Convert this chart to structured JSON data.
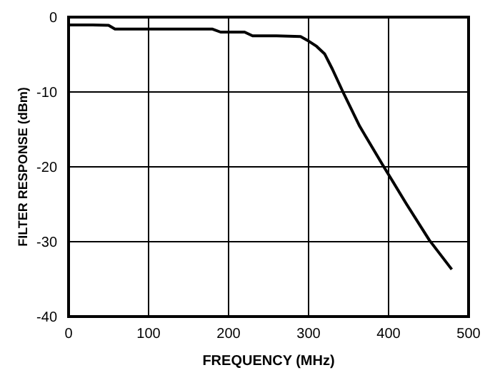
{
  "chart_data": {
    "type": "line",
    "xlabel": "FREQUENCY (MHz)",
    "ylabel": "FILTER RESPONSE (dBm)",
    "x": [
      0,
      30,
      50,
      58,
      100,
      150,
      180,
      190,
      220,
      230,
      260,
      290,
      300,
      310,
      320,
      330,
      343,
      364,
      393,
      422,
      451,
      479
    ],
    "series": [
      {
        "color": "#000000",
        "values": [
          -1.05,
          -1.05,
          -1.1,
          -1.6,
          -1.6,
          -1.6,
          -1.6,
          -2.0,
          -2.0,
          -2.5,
          -2.5,
          -2.6,
          -3.2,
          -3.9,
          -4.9,
          -7.0,
          -10,
          -14.6,
          -19.8,
          -24.9,
          -29.8,
          -33.7
        ]
      }
    ],
    "xlim": [
      0,
      500
    ],
    "xticks": [
      0,
      100,
      200,
      300,
      400,
      500
    ],
    "ylim": [
      -40,
      0
    ],
    "yticks": [
      -40,
      -30,
      -20,
      -10,
      0
    ],
    "grid": true,
    "marker": "none",
    "line_style": "solid"
  }
}
